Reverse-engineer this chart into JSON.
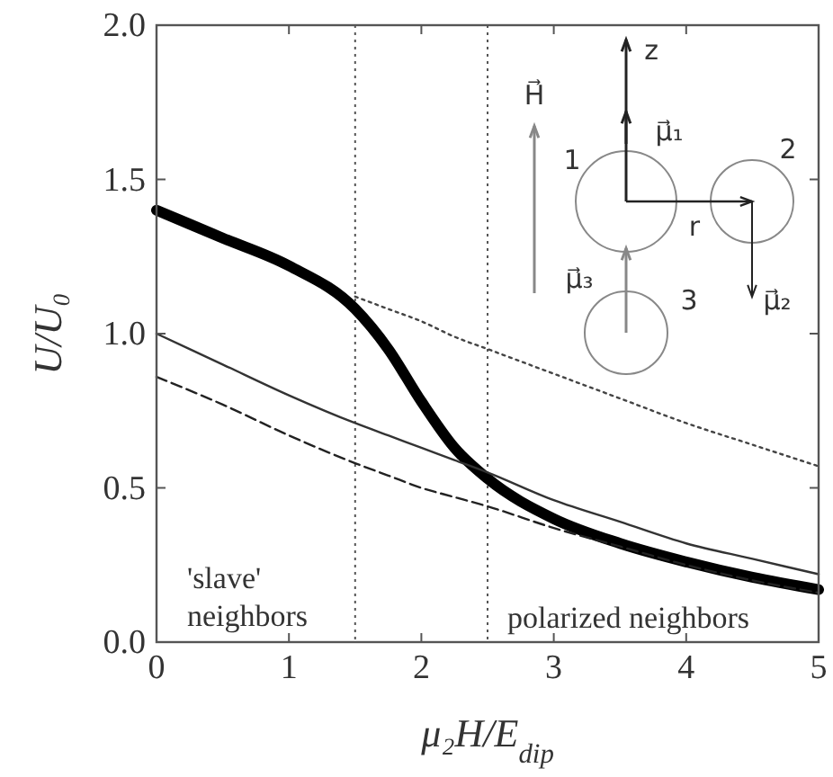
{
  "chart_data": {
    "type": "line",
    "xlabel": "μ₂H/E$_{dip}$",
    "ylabel": "U/U₀",
    "x": [
      0,
      0.5,
      1,
      1.5,
      1.75,
      2,
      2.25,
      2.5,
      3,
      3.5,
      4,
      4.5,
      5
    ],
    "series": [
      {
        "color": "#000000",
        "line_style": "solid",
        "values": [
          1.4,
          1.31,
          1.22,
          1.08,
          0.95,
          0.78,
          0.63,
          0.53,
          0.4,
          0.32,
          0.26,
          0.21,
          0.17
        ]
      },
      {
        "color": "#333333",
        "line_style": "solid",
        "values": [
          1.0,
          0.9,
          0.8,
          0.71,
          0.67,
          0.63,
          0.59,
          0.55,
          0.46,
          0.39,
          0.32,
          0.27,
          0.22
        ]
      },
      {
        "color": "#222222",
        "line_style": "dashed",
        "values": [
          0.86,
          0.77,
          0.67,
          0.58,
          0.54,
          0.5,
          0.47,
          0.44,
          0.37,
          0.31,
          0.25,
          0.2,
          0.16
        ]
      },
      {
        "color": "#444444",
        "line_style": "dotted",
        "values": [
          null,
          null,
          null,
          1.12,
          1.08,
          1.04,
          0.99,
          0.95,
          0.87,
          0.79,
          0.71,
          0.64,
          0.57
        ]
      }
    ],
    "xlim": [
      0,
      5
    ],
    "xticks": [
      0,
      1,
      2,
      3,
      4,
      5
    ],
    "ylim": [
      0,
      2
    ],
    "yticks": [
      {
        "value": 0,
        "label": "0.0"
      },
      {
        "value": 0.5,
        "label": "0.5"
      },
      {
        "value": 1,
        "label": "1.0"
      },
      {
        "value": 1.5,
        "label": "1.5"
      },
      {
        "value": 2,
        "label": "2.0"
      }
    ],
    "ref_lines": [
      {
        "axis": "x",
        "value": 1.5,
        "color": "#555555",
        "line_style": "dotted"
      },
      {
        "axis": "x",
        "value": 2.5,
        "color": "#555555",
        "line_style": "dotted"
      }
    ],
    "annotations": [
      "'slave'\nneighbors",
      "polarized neighbors",
      "z",
      "H⃗",
      "μ⃗₁",
      "r",
      "μ⃗₂",
      "μ⃗₃",
      "1",
      "2",
      "3"
    ],
    "grid": false
  }
}
